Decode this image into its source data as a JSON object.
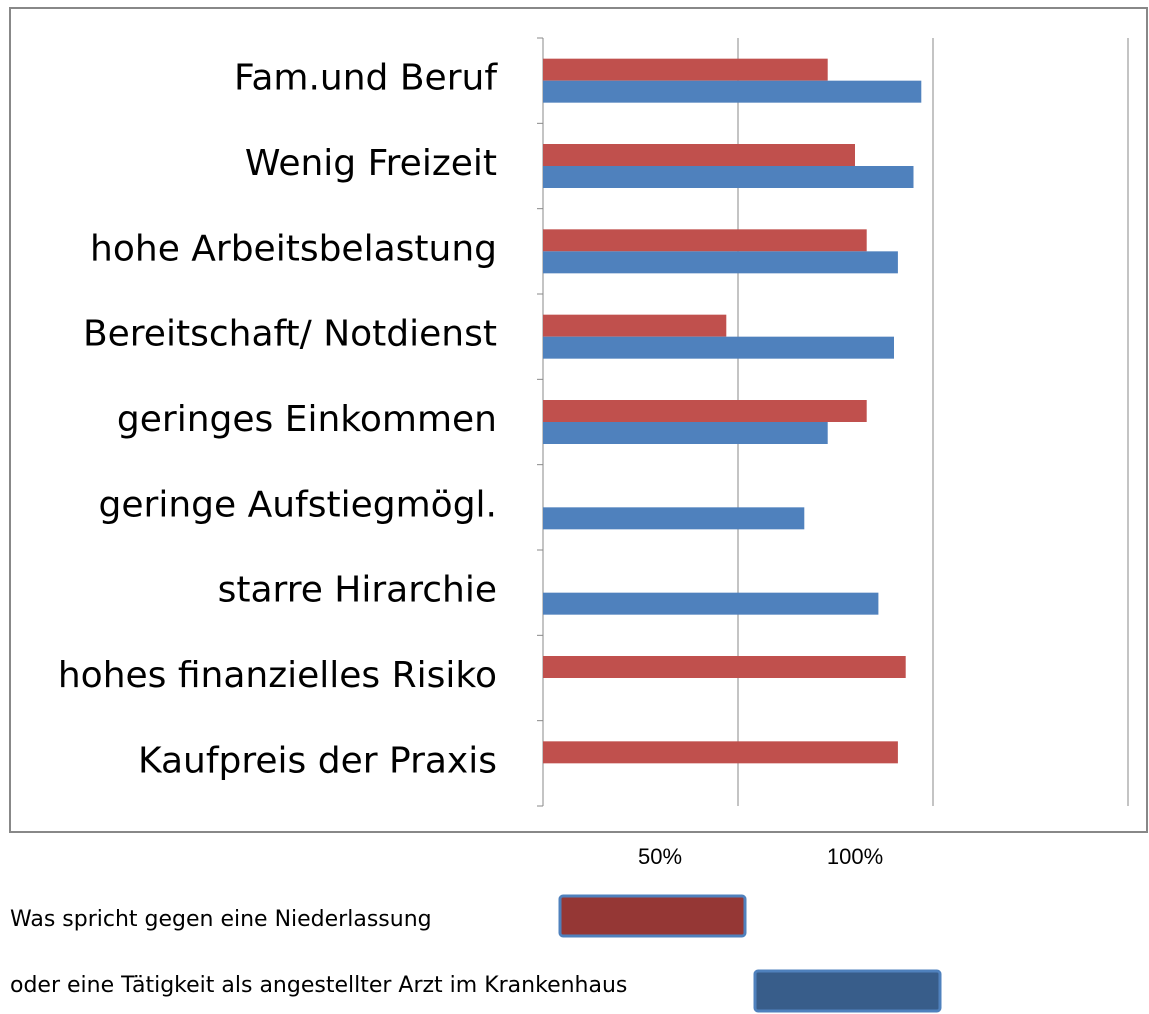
{
  "chart_data": {
    "type": "hbar",
    "categories": [
      "Fam.und Beruf",
      "Wenig Freizeit",
      "hohe Arbeitsbelastung",
      "Bereitschaft/ Notdienst",
      "geringes Einkommen",
      "geringe Aufstiegmögl.",
      "starre Hirarchie",
      "hohes finanzielles Risiko",
      "Kaufpreis der Praxis"
    ],
    "series": [
      {
        "name": "Was spricht gegen eine Niederlassung",
        "color": "#c0504d",
        "legend_color": "#953735",
        "values": [
          73,
          80,
          83,
          47,
          83,
          null,
          null,
          93,
          91
        ]
      },
      {
        "name": "oder eine Tätigkeit als angestellter Arzt im Krankenhaus",
        "color": "#4f81bd",
        "legend_color": "#385d8a",
        "values": [
          97,
          95,
          91,
          90,
          73,
          67,
          86,
          null,
          null
        ]
      }
    ],
    "xlim": [
      0,
      150
    ],
    "xticks": [
      {
        "value": 50,
        "label": "50%"
      },
      {
        "value": 100,
        "label": "100%"
      }
    ],
    "grid": true
  }
}
